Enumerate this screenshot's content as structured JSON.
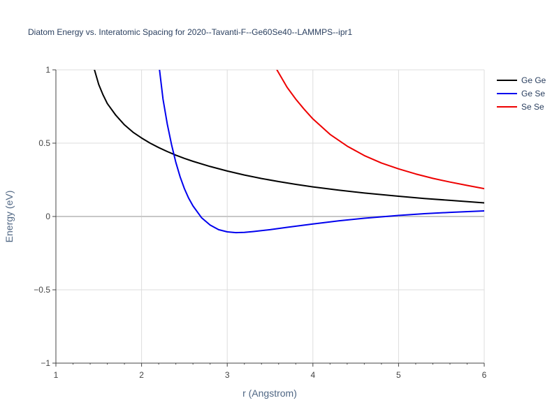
{
  "chart_data": {
    "type": "line",
    "title": "Diatom Energy vs. Interatomic Spacing for 2020--Tavanti-F--Ge60Se40--LAMMPS--ipr1",
    "xlabel": "r (Angstrom)",
    "ylabel": "Energy (eV)",
    "xlim": [
      1,
      6
    ],
    "ylim": [
      -1,
      1
    ],
    "xticks": [
      1,
      2,
      3,
      4,
      5,
      6
    ],
    "xtick_labels": [
      "1",
      "2",
      "3",
      "4",
      "5",
      "6"
    ],
    "yticks": [
      -1,
      -0.5,
      0,
      0.5,
      1
    ],
    "ytick_labels": [
      "−1",
      "−0.5",
      "0",
      "0.5",
      "1"
    ],
    "grid": true,
    "legend_position": "top-right",
    "series": [
      {
        "name": "Ge Ge",
        "color": "#000000",
        "x": [
          1.45,
          1.5,
          1.55,
          1.6,
          1.7,
          1.8,
          1.9,
          2.0,
          2.1,
          2.2,
          2.3,
          2.4,
          2.5,
          2.6,
          2.8,
          3.0,
          3.2,
          3.4,
          3.6,
          3.8,
          4.0,
          4.3,
          4.6,
          5.0,
          5.3,
          5.6,
          6.0
        ],
        "y": [
          1.0,
          0.9,
          0.83,
          0.77,
          0.69,
          0.625,
          0.575,
          0.535,
          0.5,
          0.47,
          0.443,
          0.418,
          0.396,
          0.376,
          0.341,
          0.31,
          0.283,
          0.259,
          0.238,
          0.219,
          0.202,
          0.18,
          0.16,
          0.138,
          0.123,
          0.11,
          0.093
        ]
      },
      {
        "name": "Ge Se",
        "color": "#0000ee",
        "x": [
          2.21,
          2.25,
          2.3,
          2.35,
          2.4,
          2.45,
          2.5,
          2.55,
          2.6,
          2.7,
          2.8,
          2.9,
          3.0,
          3.1,
          3.2,
          3.3,
          3.5,
          3.7,
          4.0,
          4.3,
          4.6,
          5.0,
          5.3,
          5.6,
          6.0
        ],
        "y": [
          1.0,
          0.8,
          0.63,
          0.49,
          0.37,
          0.27,
          0.19,
          0.125,
          0.072,
          -0.008,
          -0.058,
          -0.09,
          -0.105,
          -0.11,
          -0.108,
          -0.103,
          -0.09,
          -0.074,
          -0.051,
          -0.03,
          -0.012,
          0.007,
          0.019,
          0.028,
          0.038
        ]
      },
      {
        "name": "Se Se",
        "color": "#ee0000",
        "x": [
          3.58,
          3.65,
          3.7,
          3.8,
          3.9,
          4.0,
          4.2,
          4.4,
          4.6,
          4.8,
          5.0,
          5.2,
          5.4,
          5.6,
          5.8,
          6.0
        ],
        "y": [
          1.0,
          0.93,
          0.88,
          0.8,
          0.73,
          0.665,
          0.56,
          0.48,
          0.415,
          0.365,
          0.325,
          0.29,
          0.26,
          0.235,
          0.212,
          0.19
        ]
      }
    ]
  }
}
